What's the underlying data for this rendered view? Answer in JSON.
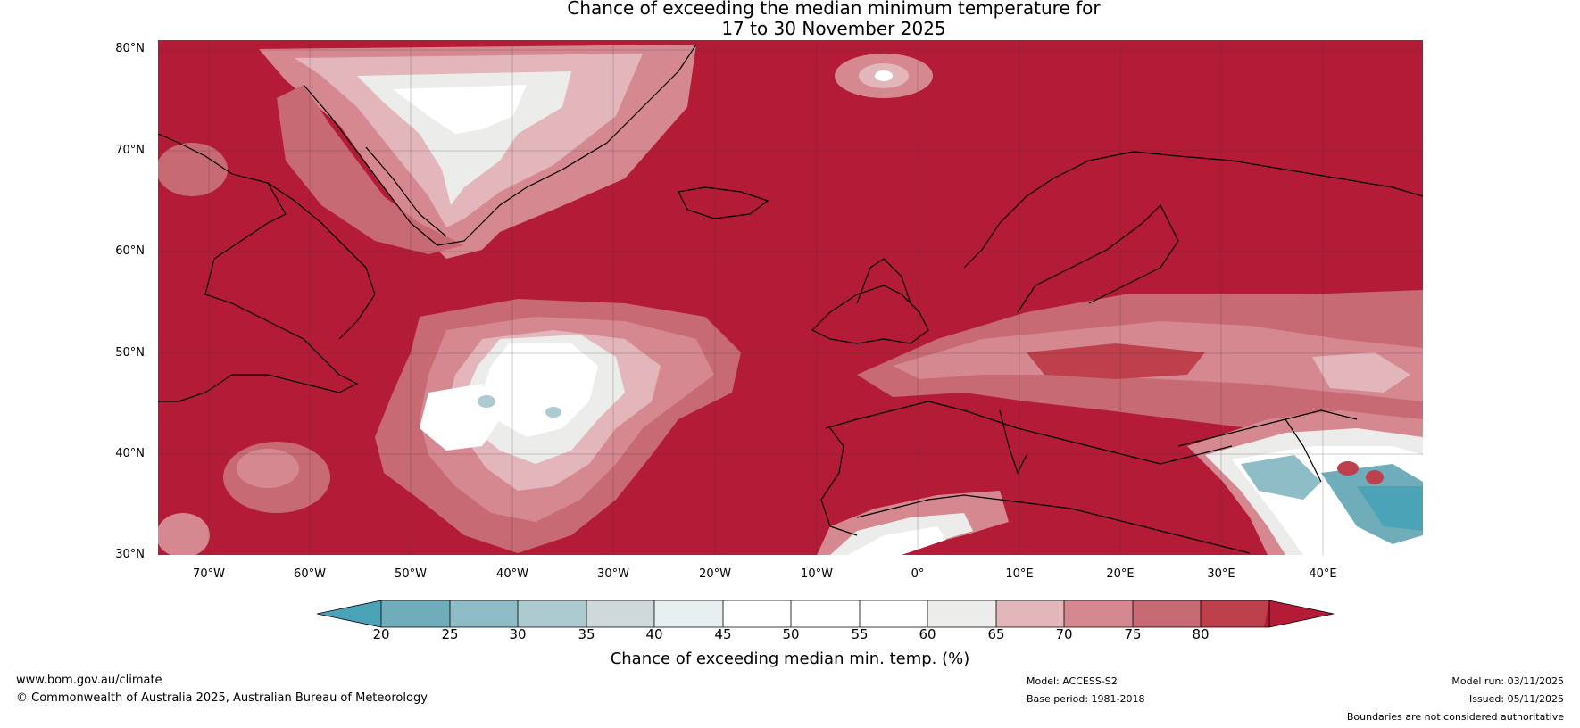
{
  "title_line1": "Chance of exceeding the median minimum temperature for",
  "title_line2": "17 to 30 November 2025",
  "colors": {
    "background_high": "#b31b36",
    "levels": [
      "#4ba3b7",
      "#6fadba",
      "#8ebcc7",
      "#aecad1",
      "#cfd8db",
      "#e8eff0",
      "#ffffff",
      "#ffffff",
      "#ececea",
      "#e3b6bc",
      "#d68891",
      "#c76a73",
      "#bd404c",
      "#b31b36"
    ]
  },
  "latitude_labels": [
    "80°N",
    "70°N",
    "60°N",
    "50°N",
    "40°N",
    "30°N"
  ],
  "longitude_labels": [
    "70°W",
    "60°W",
    "50°W",
    "40°W",
    "30°W",
    "20°W",
    "10°W",
    "0°",
    "10°E",
    "20°E",
    "30°E",
    "40°E"
  ],
  "colorbar": {
    "ticks": [
      "20",
      "25",
      "30",
      "35",
      "40",
      "45",
      "50",
      "55",
      "60",
      "65",
      "70",
      "75",
      "80"
    ],
    "label": "Chance of exceeding median min. temp. (%)"
  },
  "footer": {
    "website": "www.bom.gov.au/climate",
    "copyright": "© Commonwealth of Australia 2025, Australian Bureau of Meteorology",
    "model": "Model: ACCESS-S2",
    "base_period": "Base period: 1981-2018",
    "model_run": "Model run: 03/11/2025",
    "issued": "Issued: 05/11/2025",
    "disclaimer": "Boundaries are not considered authoritative"
  }
}
